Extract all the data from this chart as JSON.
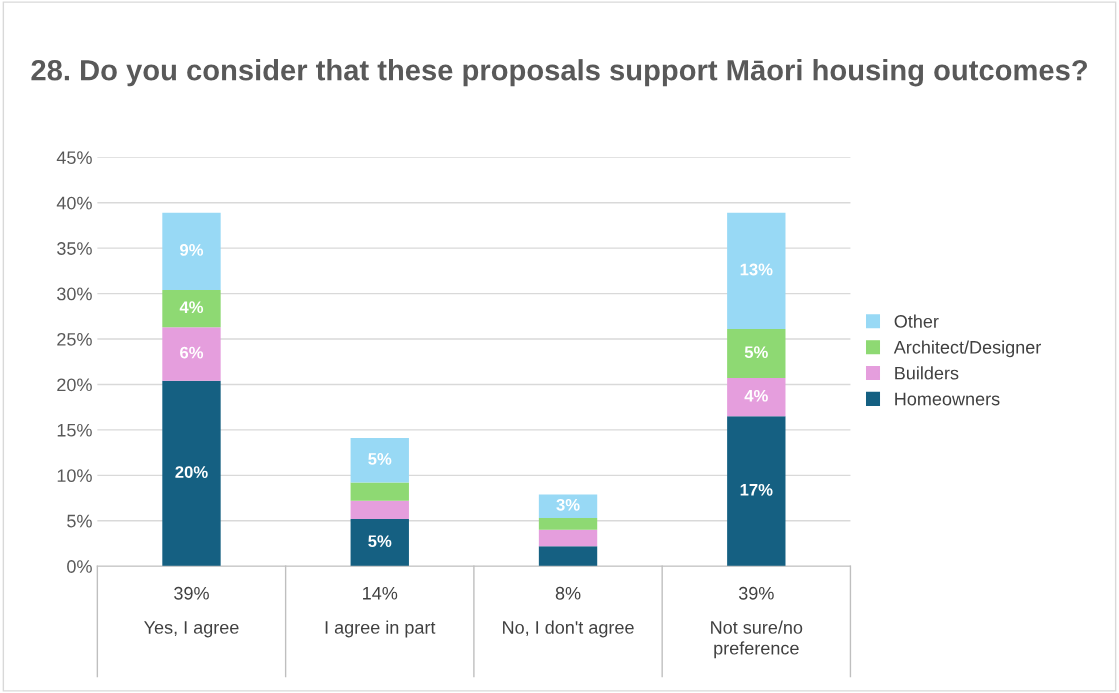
{
  "chart_data": {
    "type": "bar",
    "title": "28. Do you consider that these proposals support Māori housing outcomes?",
    "categories": [
      "Yes, I agree",
      "I agree in part",
      "No, I don't agree",
      "Not sure/no preference"
    ],
    "stacked": true,
    "series": [
      {
        "name": "Homeowners",
        "color": "#156082",
        "values": [
          20.4,
          5.2,
          2.2,
          16.5
        ],
        "value_labels": [
          "20%",
          "5%",
          null,
          "17%"
        ]
      },
      {
        "name": "Builders",
        "color": "#e59edd",
        "values": [
          5.9,
          2.0,
          1.8,
          4.2
        ],
        "value_labels": [
          "6%",
          null,
          null,
          "4%"
        ]
      },
      {
        "name": "Architect/Designer",
        "color": "#8ed973",
        "values": [
          4.1,
          2.0,
          1.3,
          5.4
        ],
        "value_labels": [
          "4%",
          null,
          null,
          "5%"
        ]
      },
      {
        "name": "Other",
        "color": "#98d9f5",
        "values": [
          8.5,
          4.9,
          2.6,
          12.8
        ],
        "value_labels": [
          "9%",
          "5%",
          "3%",
          "13%"
        ]
      }
    ],
    "totals": [
      "39%",
      "14%",
      "8%",
      "39%"
    ],
    "ylim": [
      0,
      45
    ],
    "yticks": [
      {
        "value": 0,
        "label": "0%"
      },
      {
        "value": 5,
        "label": "5%"
      },
      {
        "value": 10,
        "label": "10%"
      },
      {
        "value": 15,
        "label": "15%"
      },
      {
        "value": 20,
        "label": "20%"
      },
      {
        "value": 25,
        "label": "25%"
      },
      {
        "value": 30,
        "label": "30%"
      },
      {
        "value": 35,
        "label": "35%"
      },
      {
        "value": 40,
        "label": "40%"
      },
      {
        "value": 45,
        "label": "45%"
      }
    ],
    "grid": "y",
    "legend": "right"
  }
}
